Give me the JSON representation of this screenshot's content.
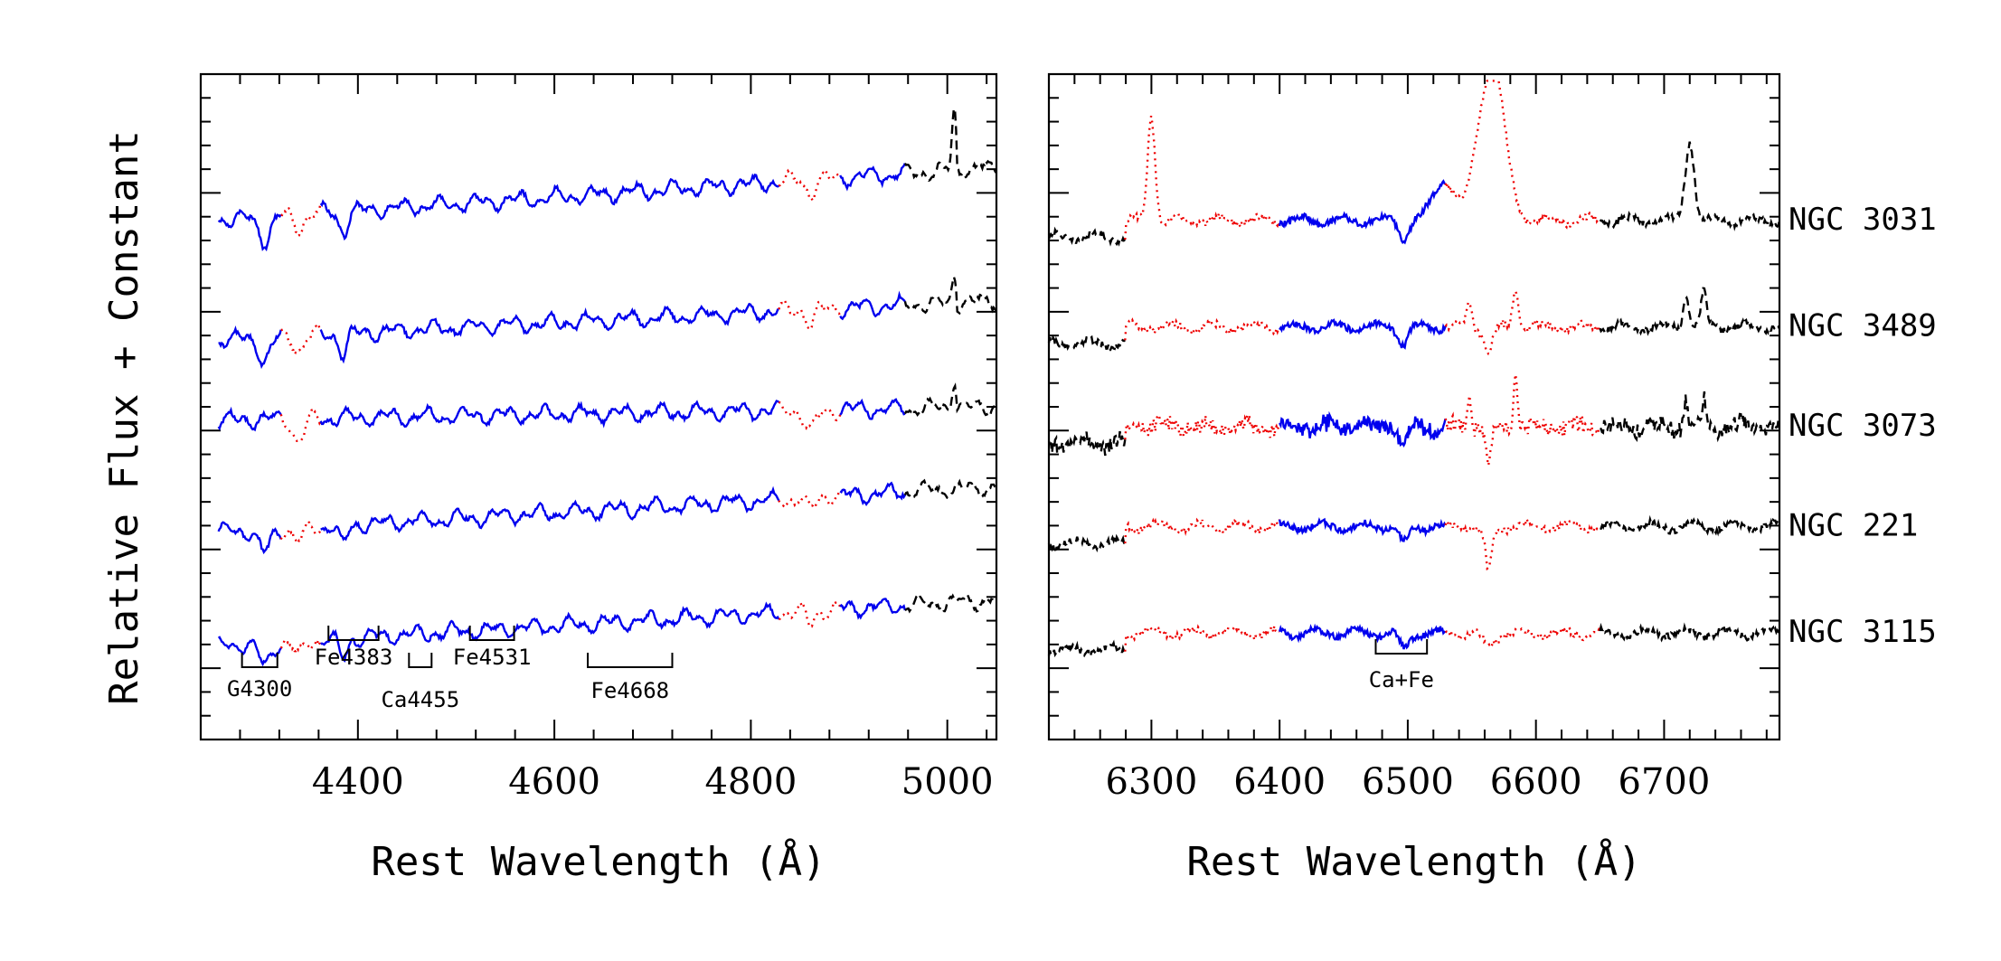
{
  "chart_data": [
    {
      "type": "line",
      "panel": "left",
      "xlabel": "Rest Wavelength (Å)",
      "ylabel": "Relative Flux + Constant",
      "xlim": [
        4240,
        5050
      ],
      "xticks": [
        4400,
        4600,
        4800,
        5000
      ],
      "ylim": [
        0,
        1
      ],
      "indices": [
        {
          "name": "G4300",
          "start": 4282,
          "end": 4318
        },
        {
          "name": "Fe4383",
          "start": 4370,
          "end": 4421
        },
        {
          "name": "Ca4455",
          "start": 4452,
          "end": 4475
        },
        {
          "name": "Fe4531",
          "start": 4514,
          "end": 4559
        },
        {
          "name": "Fe4668",
          "start": 4634,
          "end": 4720
        }
      ],
      "series": [
        {
          "name": "NGC 3031",
          "offset": 0.78,
          "amp": 0.08
        },
        {
          "name": "NGC 3489",
          "offset": 0.6,
          "amp": 0.06
        },
        {
          "name": "NGC 3073",
          "offset": 0.48,
          "amp": 0.02
        },
        {
          "name": "NGC 221",
          "offset": 0.31,
          "amp": 0.07
        },
        {
          "name": "NGC 3115",
          "offset": 0.14,
          "amp": 0.07
        }
      ],
      "segments": [
        {
          "style": "solid-blue",
          "ranges": [
            [
              4258,
              4322
            ],
            [
              4363,
              4829
            ],
            [
              4892,
              4958
            ]
          ]
        },
        {
          "style": "dotted-red",
          "ranges": [
            [
              4322,
              4363
            ],
            [
              4829,
              4892
            ]
          ]
        },
        {
          "style": "dashed-black",
          "ranges": [
            [
              4958,
              5050
            ]
          ]
        }
      ]
    },
    {
      "type": "line",
      "panel": "right",
      "xlabel": "Rest Wavelength (Å)",
      "xlim": [
        6220,
        6790
      ],
      "xticks": [
        6300,
        6400,
        6500,
        6600,
        6700
      ],
      "ylim": [
        0,
        1
      ],
      "indices": [
        {
          "name": "Ca+Fe",
          "start": 6475,
          "end": 6515
        }
      ],
      "series": [
        {
          "name": "NGC 3031",
          "offset": 0.78
        },
        {
          "name": "NGC 3489",
          "offset": 0.62
        },
        {
          "name": "NGC 3073",
          "offset": 0.47
        },
        {
          "name": "NGC 221",
          "offset": 0.32
        },
        {
          "name": "NGC 3115",
          "offset": 0.16
        }
      ],
      "segments": [
        {
          "style": "solid-blue",
          "ranges": [
            [
              6400,
              6530
            ]
          ]
        },
        {
          "style": "dotted-red",
          "ranges": [
            [
              6280,
              6400
            ],
            [
              6530,
              6650
            ]
          ]
        },
        {
          "style": "dashed-black",
          "ranges": [
            [
              6220,
              6280
            ],
            [
              6650,
              6790
            ]
          ]
        }
      ]
    }
  ],
  "colors": {
    "solid": "#0000ee",
    "dotted": "#ee0000",
    "dashed": "#000000"
  }
}
